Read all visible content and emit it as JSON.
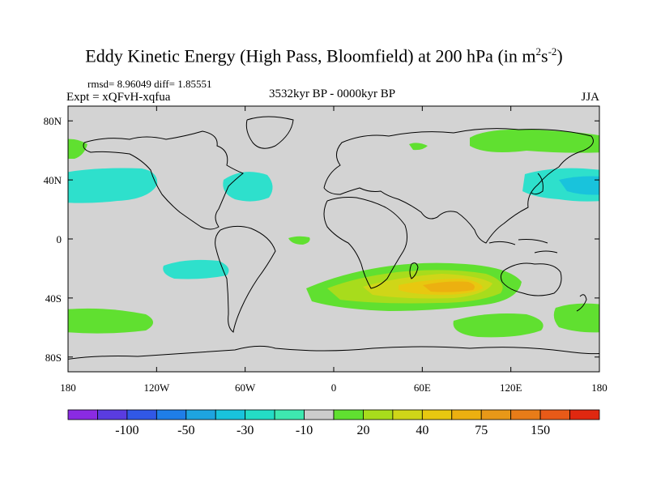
{
  "title": "Eddy Kinetic Energy (High Pass, Bloomfield) at 200 hPa (in m",
  "title_sup1": "2",
  "title_mid": "s",
  "title_sup2": "-2",
  "title_end": ")",
  "stats": "rmsd= 8.96049 diff= 1.85551",
  "experiment": "Expt = xQFvH-xqfua",
  "period": "3532kyr BP - 0000kyr BP",
  "season": "JJA",
  "map": {
    "lat_labels": [
      "80N",
      "40N",
      "0",
      "40S",
      "80S"
    ],
    "lat_values": [
      80,
      40,
      0,
      -40,
      -80
    ],
    "lon_labels": [
      "180",
      "120W",
      "60W",
      "0",
      "60E",
      "120E",
      "180"
    ],
    "lon_values": [
      -180,
      -120,
      -60,
      0,
      60,
      120,
      180
    ],
    "land_color": "#d3d3d3"
  },
  "colorbar": {
    "colors": [
      "#8a2be2",
      "#5a3ce0",
      "#3158e6",
      "#1f7ee8",
      "#1ea4e0",
      "#19c3dc",
      "#24dcc6",
      "#3ee8b0",
      "#cccccc",
      "#60e030",
      "#a8dc1c",
      "#cfd618",
      "#e8c810",
      "#ecb010",
      "#e89818",
      "#e87c18",
      "#e85a18",
      "#e02810"
    ],
    "labels": [
      "-100",
      "-50",
      "-30",
      "-10",
      "20",
      "40",
      "75",
      "150"
    ]
  },
  "anomalies": [
    {
      "name": "north-pacific-cyan",
      "level": "-10",
      "color": "#2ee0cc"
    },
    {
      "name": "north-atlantic-cyan",
      "level": "-10",
      "color": "#2ee0cc"
    },
    {
      "name": "south-pacific-cyan",
      "level": "-10",
      "color": "#2ee0cc"
    },
    {
      "name": "northwest-pacific-cyan",
      "level": "-10",
      "color": "#2ee0cc"
    },
    {
      "name": "arctic-green",
      "level": "20",
      "color": "#60e030"
    },
    {
      "name": "southern-indian-ocean-max",
      "level": "40",
      "color": "#e8c810"
    }
  ]
}
